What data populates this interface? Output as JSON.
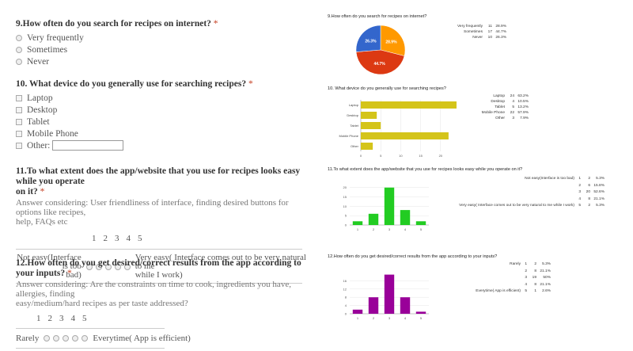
{
  "form": {
    "q9": {
      "title": "9.How often do you search for recipes on internet?",
      "required_mark": "*",
      "options": [
        "Very frequently",
        "Sometimes",
        "Never"
      ]
    },
    "q10": {
      "title": "10. What device do you generally use for searching recipes?",
      "required_mark": "*",
      "options": [
        "Laptop",
        "Desktop",
        "Tablet",
        "Mobile Phone"
      ],
      "other_label": "Other:",
      "other_value": ""
    },
    "q11": {
      "title_line1": "11.To what extent does the app/website that you use for recipes looks easy while you operate",
      "title_line2": "on it?",
      "required_mark": "*",
      "hint_line1": "Answer considering: User friendliness of interface, finding desired buttons for options like recipes,",
      "hint_line2": "help, FAQs etc",
      "scale": [
        "1",
        "2",
        "3",
        "4",
        "5"
      ],
      "low_label_line1": "Not easy(Interface is too",
      "low_label_line2": "bad)",
      "high_label_line1": "Very easy( Interface comes out to be very natural to me",
      "high_label_line2": "while I work)"
    },
    "q12": {
      "title": "12.How often do you get desired/correct results from the app according to your inputs?",
      "required_mark": "*",
      "hint_line1": "Answer considering: Are the constraints on time to cook, ingredients you have, allergies, finding",
      "hint_line2": "easy/medium/hard recipes as per taste addressed?",
      "scale": [
        "1",
        "2",
        "3",
        "4",
        "5"
      ],
      "low_label": "Rarely",
      "high_label": "Everytime( App is efficient)"
    }
  },
  "summary": {
    "s9": {
      "title": "9.How often do you search for recipes on internet?",
      "rows": [
        {
          "label": "Very frequently",
          "count": "11",
          "pct": "28.9%"
        },
        {
          "label": "Sometimes",
          "count": "17",
          "pct": "44.7%"
        },
        {
          "label": "Never",
          "count": "10",
          "pct": "26.3%"
        }
      ]
    },
    "s10": {
      "title": "10. What device do you generally use for searching recipes?",
      "rows": [
        {
          "label": "Laptop",
          "count": "24",
          "pct": "63.2%"
        },
        {
          "label": "Desktop",
          "count": "4",
          "pct": "10.5%"
        },
        {
          "label": "Tablet",
          "count": "5",
          "pct": "13.2%"
        },
        {
          "label": "Mobile Phone",
          "count": "22",
          "pct": "57.9%"
        },
        {
          "label": "Other",
          "count": "3",
          "pct": "7.9%"
        }
      ]
    },
    "s11": {
      "title": "11.To what extent does the app/website that you use for recipes looks easy while you operate on it?",
      "rows": [
        {
          "label": "Not easy(Interface is too bad)",
          "scale": "1",
          "count": "2",
          "pct": "5.3%"
        },
        {
          "label": "",
          "scale": "2",
          "count": "6",
          "pct": "15.8%"
        },
        {
          "label": "",
          "scale": "3",
          "count": "20",
          "pct": "52.6%"
        },
        {
          "label": "",
          "scale": "4",
          "count": "8",
          "pct": "21.1%"
        },
        {
          "label": "Very easy( Interface comes out to be very natural to me while I work)",
          "scale": "5",
          "count": "2",
          "pct": "5.3%"
        }
      ]
    },
    "s12": {
      "title": "12.How often do you get desired/correct results from the app according to your inputs?",
      "rows": [
        {
          "label": "Rarely",
          "scale": "1",
          "count": "2",
          "pct": "5.3%"
        },
        {
          "label": "",
          "scale": "2",
          "count": "8",
          "pct": "21.1%"
        },
        {
          "label": "",
          "scale": "3",
          "count": "19",
          "pct": "50%"
        },
        {
          "label": "",
          "scale": "4",
          "count": "8",
          "pct": "21.1%"
        },
        {
          "label": "Everytime( App is efficient)",
          "scale": "5",
          "count": "1",
          "pct": "2.6%"
        }
      ]
    }
  },
  "chart_data": [
    {
      "type": "pie",
      "categories": [
        "Very frequently",
        "Sometimes",
        "Never"
      ],
      "values": [
        11,
        17,
        10
      ],
      "slice_labels": [
        "28.9%",
        "44.7%",
        "26.3%"
      ],
      "colors": [
        "#ff9900",
        "#dc3912",
        "#3366cc"
      ]
    },
    {
      "type": "bar",
      "orientation": "horizontal",
      "categories": [
        "Laptop",
        "Desktop",
        "Tablet",
        "Mobile Phone",
        "Other"
      ],
      "values": [
        24,
        4,
        5,
        22,
        3
      ],
      "xticks": [
        "0",
        "5",
        "10",
        "15",
        "20"
      ],
      "xlim": [
        0,
        25
      ],
      "color": "#d4c41a"
    },
    {
      "type": "bar",
      "categories": [
        "1",
        "2",
        "3",
        "4",
        "5"
      ],
      "values": [
        2,
        6,
        20,
        8,
        2
      ],
      "yticks": [
        "0",
        "5",
        "10",
        "15",
        "20"
      ],
      "ylim": [
        0,
        22
      ],
      "color": "#22cc22"
    },
    {
      "type": "bar",
      "categories": [
        "1",
        "2",
        "3",
        "4",
        "5"
      ],
      "values": [
        2,
        8,
        19,
        8,
        1
      ],
      "yticks": [
        "0",
        "4",
        "8",
        "12",
        "16"
      ],
      "ylim": [
        0,
        20
      ],
      "color": "#990099"
    }
  ]
}
